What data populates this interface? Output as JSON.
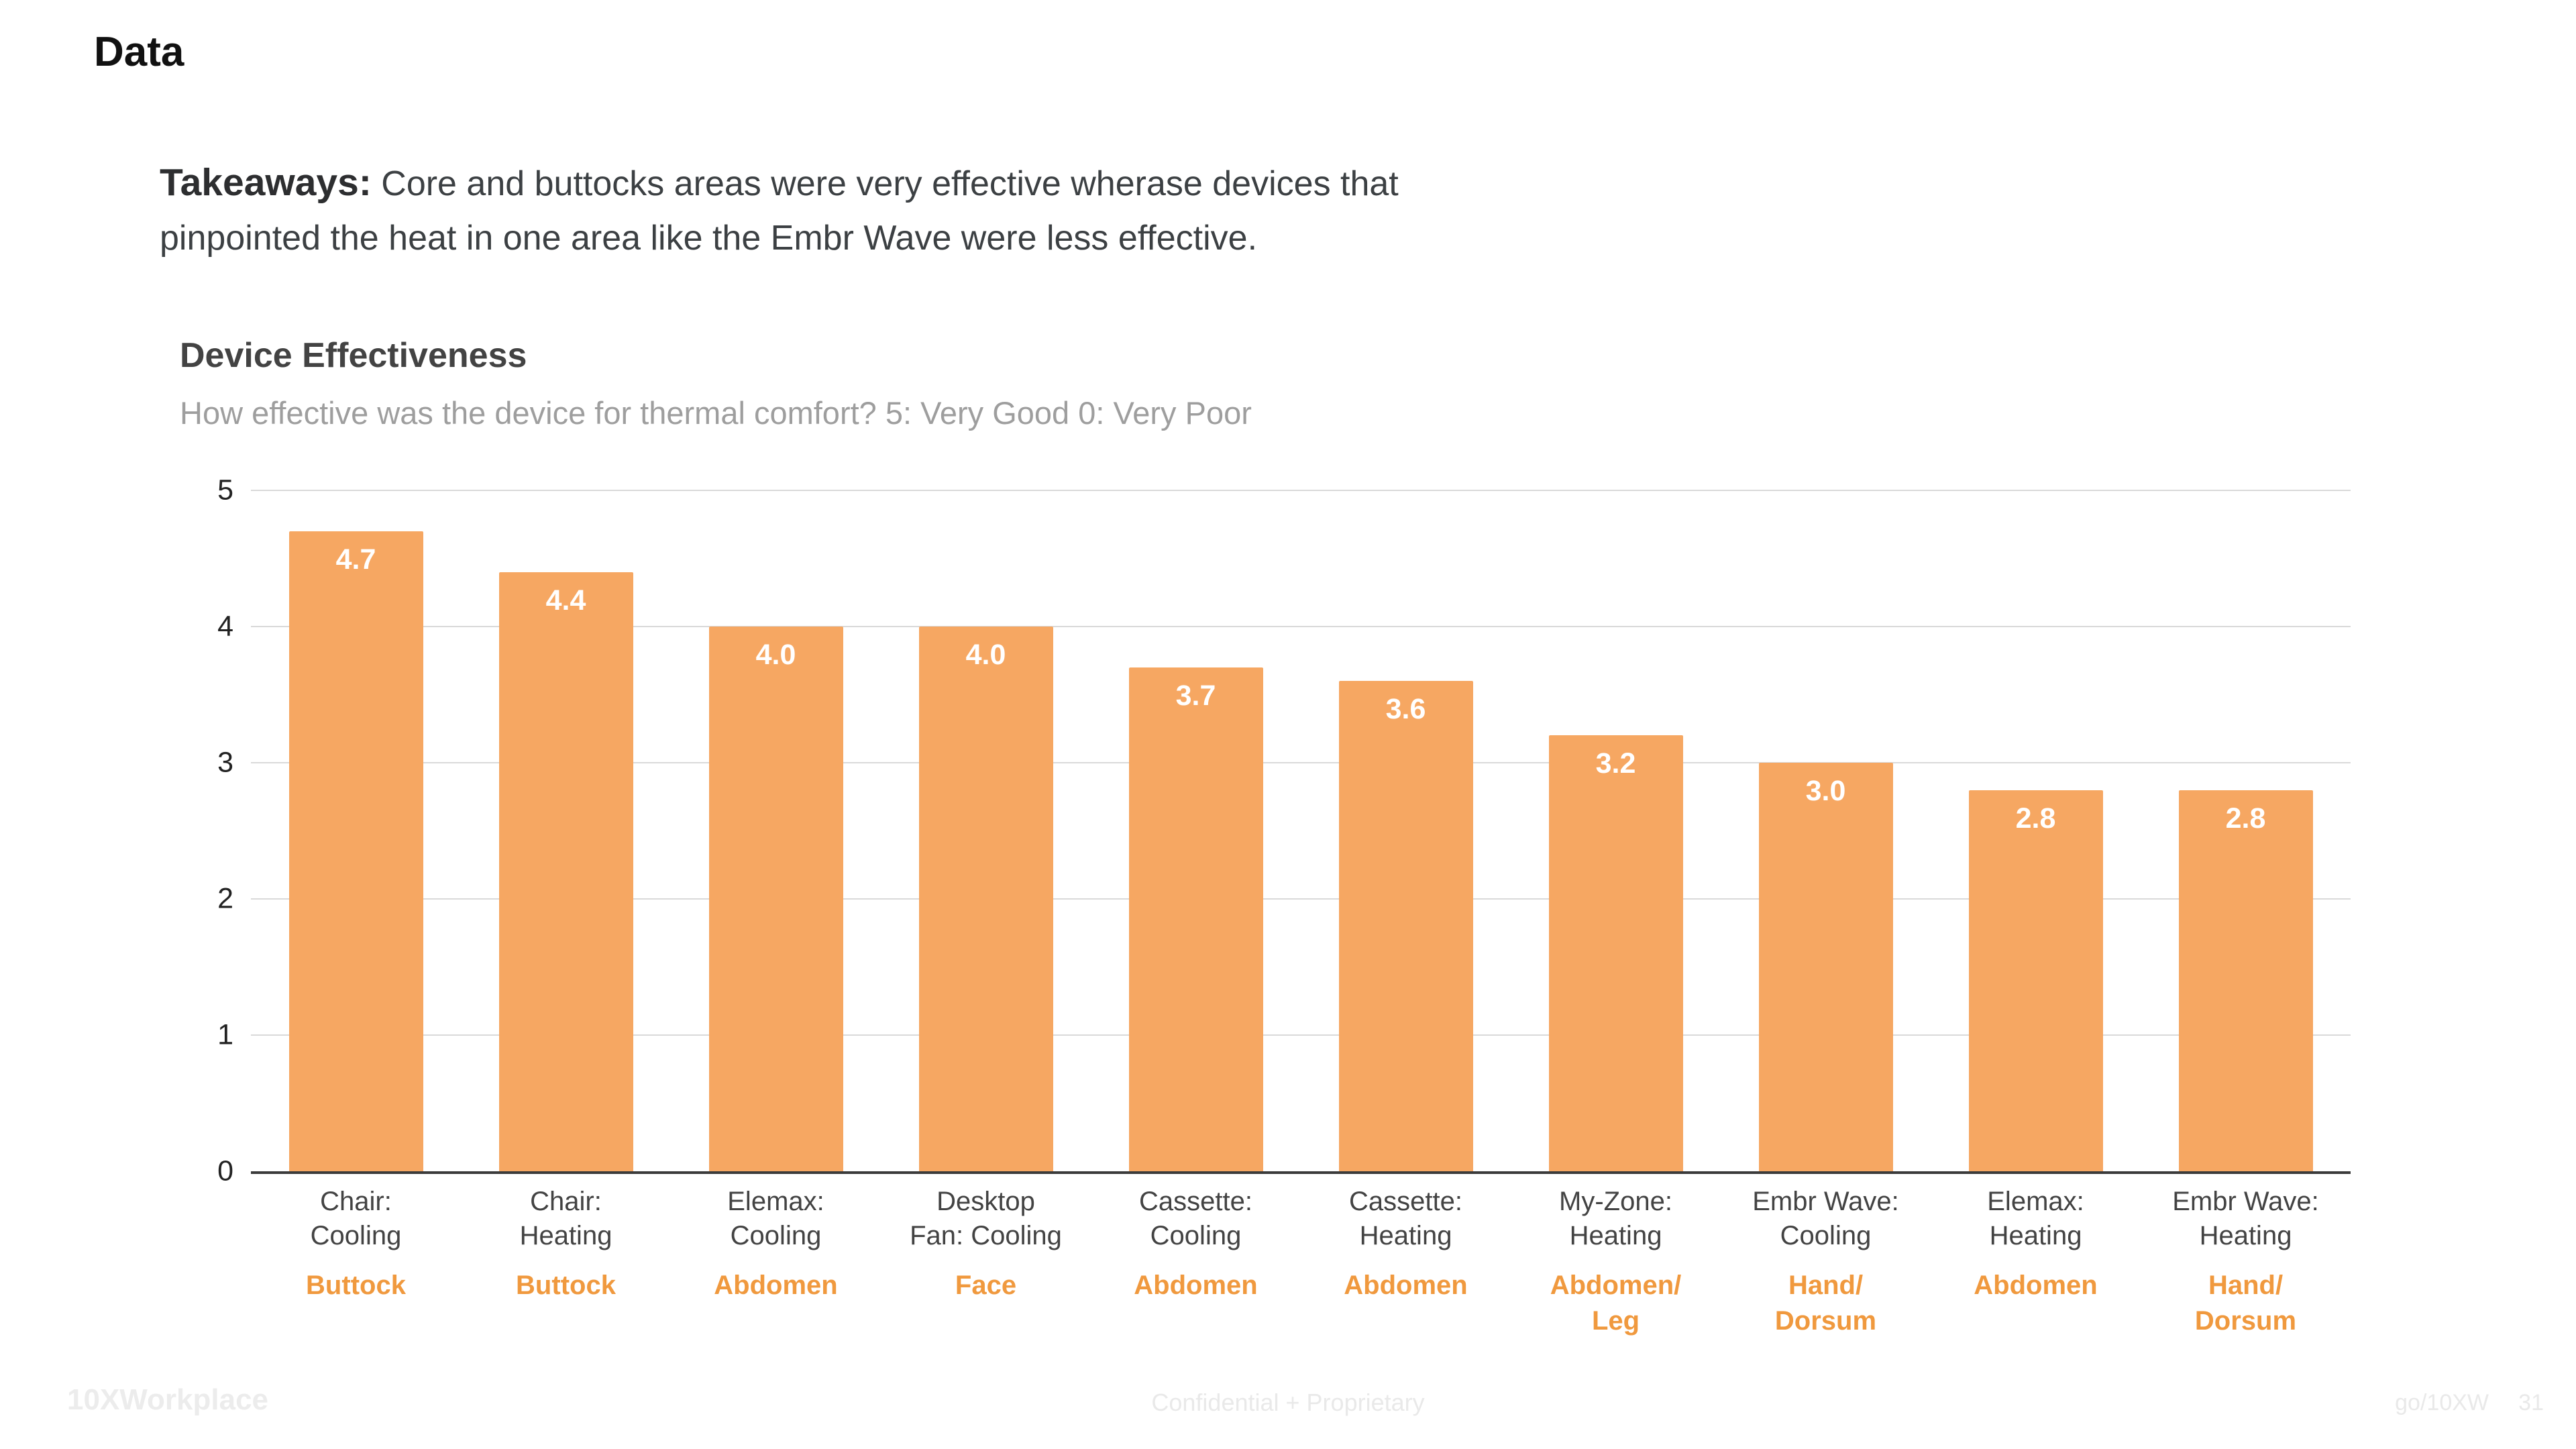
{
  "slide": {
    "title": "Data"
  },
  "takeaways": {
    "label": "Takeaways:",
    "line1": "Core and buttocks areas were very effective wherase devices that",
    "line2": "pinpointed the heat in one area like the Embr Wave were less effective."
  },
  "chart_data": {
    "type": "bar",
    "title": "Device Effectiveness",
    "subtitle": "How effective was the device for thermal comfort? 5: Very Good 0: Very Poor",
    "xlabel": "",
    "ylabel": "",
    "ylim": [
      0,
      5
    ],
    "yticks": [
      0,
      1,
      2,
      3,
      4,
      5
    ],
    "grid": "horizontal",
    "legend": "none",
    "categories": [
      "Chair:\nCooling",
      "Chair:\nHeating",
      "Elemax:\nCooling",
      "Desktop\nFan: Cooling",
      "Cassette:\nCooling",
      "Cassette:\nHeating",
      "My-Zone:\nHeating",
      "Embr Wave:\nCooling",
      "Elemax:\nHeating",
      "Embr Wave:\nHeating"
    ],
    "locations": [
      "Buttock",
      "Buttock",
      "Abdomen",
      "Face",
      "Abdomen",
      "Abdomen",
      "Abdomen/\nLeg",
      "Hand/\nDorsum",
      "Abdomen",
      "Hand/\nDorsum"
    ],
    "values": [
      4.7,
      4.4,
      4.0,
      4.0,
      3.7,
      3.6,
      3.2,
      3.0,
      2.8,
      2.8
    ],
    "value_labels": [
      "4.7",
      "4.4",
      "4.0",
      "4.0",
      "3.7",
      "3.6",
      "3.2",
      "3.0",
      "2.8",
      "2.8"
    ]
  },
  "colors": {
    "bar": "#F6A762",
    "accent_text": "#F0993E",
    "grid": "#D9D9D9",
    "axis": "#3B3B3B",
    "subtitle": "#9E9E9E"
  },
  "footer": {
    "left": "10XWorkplace",
    "center": "Confidential + Proprietary",
    "right": "go/10XW",
    "page": "31"
  }
}
